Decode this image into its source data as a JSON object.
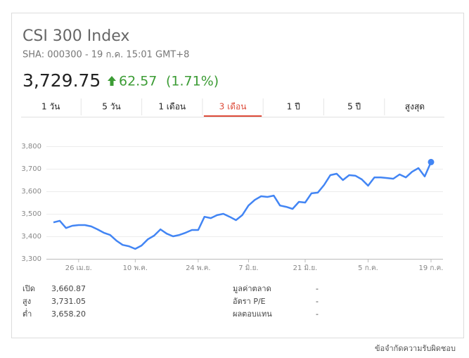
{
  "header": {
    "title": "CSI 300 Index",
    "subtitle": "SHA: 000300 - 19 ก.ค. 15:01 GMT+8",
    "price": "3,729.75",
    "change": "62.57",
    "change_pct": "(1.71%)"
  },
  "tabs": {
    "items": [
      "1 วัน",
      "5 วัน",
      "1 เดือน",
      "3 เดือน",
      "1 ปี",
      "5 ปี",
      "สูงสุด"
    ],
    "selected": 3
  },
  "chart_data": {
    "type": "line",
    "color": "#4285f4",
    "grid": true,
    "categories": [
      null,
      null,
      null,
      null,
      "26 เม.ย.",
      null,
      null,
      null,
      null,
      null,
      null,
      null,
      null,
      "10 พ.ค.",
      null,
      null,
      null,
      null,
      null,
      null,
      null,
      null,
      null,
      "24 พ.ค.",
      null,
      null,
      null,
      null,
      null,
      null,
      null,
      "7 มิ.ย.",
      null,
      null,
      null,
      null,
      null,
      null,
      null,
      null,
      "21 มิ.ย.",
      null,
      null,
      null,
      null,
      null,
      null,
      null,
      null,
      null,
      "5 ก.ค.",
      null,
      null,
      null,
      null,
      null,
      null,
      null,
      null,
      null,
      "19 ก.ค."
    ],
    "values": [
      3462,
      3469,
      3437,
      3447,
      3450,
      3450,
      3444,
      3431,
      3416,
      3406,
      3381,
      3362,
      3356,
      3344,
      3359,
      3387,
      3403,
      3431,
      3412,
      3400,
      3406,
      3416,
      3428,
      3428,
      3487,
      3481,
      3494,
      3500,
      3487,
      3472,
      3494,
      3537,
      3562,
      3578,
      3575,
      3581,
      3537,
      3531,
      3522,
      3553,
      3550,
      3591,
      3594,
      3628,
      3672,
      3678,
      3650,
      3672,
      3669,
      3653,
      3625,
      3662,
      3662,
      3659,
      3656,
      3675,
      3662,
      3687,
      3703,
      3666,
      3730
    ],
    "ylim": [
      3300,
      3800
    ],
    "yticks": [
      {
        "value": 3300,
        "label": "3,300"
      },
      {
        "value": 3400,
        "label": "3,400"
      },
      {
        "value": 3500,
        "label": "3,500"
      },
      {
        "value": 3600,
        "label": "3,600"
      },
      {
        "value": 3700,
        "label": "3,700"
      },
      {
        "value": 3800,
        "label": "3,800"
      }
    ]
  },
  "stats": {
    "left": [
      {
        "label": "เปิด",
        "value": "3,660.87"
      },
      {
        "label": "สูง",
        "value": "3,731.05"
      },
      {
        "label": "ต่ำ",
        "value": "3,658.20"
      }
    ],
    "right": [
      {
        "label": "มูลค่าตลาด",
        "value": "-"
      },
      {
        "label": "อัตรา P/E",
        "value": "-"
      },
      {
        "label": "ผลตอบแทน",
        "value": "-"
      }
    ]
  },
  "footer": {
    "disclaimer": "ข้อจำกัดความรับผิดชอบ"
  }
}
